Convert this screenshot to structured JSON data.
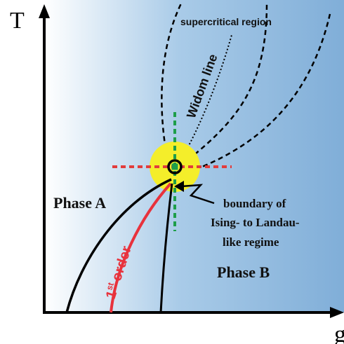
{
  "axes": {
    "y_label": "T",
    "x_label": "g"
  },
  "regions": {
    "supercritical": "supercritical region",
    "widom": "Widom line",
    "phase_a": "Phase A",
    "phase_b": "Phase B"
  },
  "first_order": {
    "sup": "st",
    "num": "1",
    "word": "order"
  },
  "annotation": {
    "line1": "boundary of",
    "line2": "Ising- to Landau-",
    "line3": "like regime"
  },
  "colors": {
    "background_left": "#ffffff",
    "background_right": "#86b3db",
    "first_order_line": "#e8323c",
    "critical_halo": "#f4ee2a",
    "crosshair_red": "#e23c3c",
    "crosshair_green": "#1e9e4a",
    "axis": "#000000"
  }
}
